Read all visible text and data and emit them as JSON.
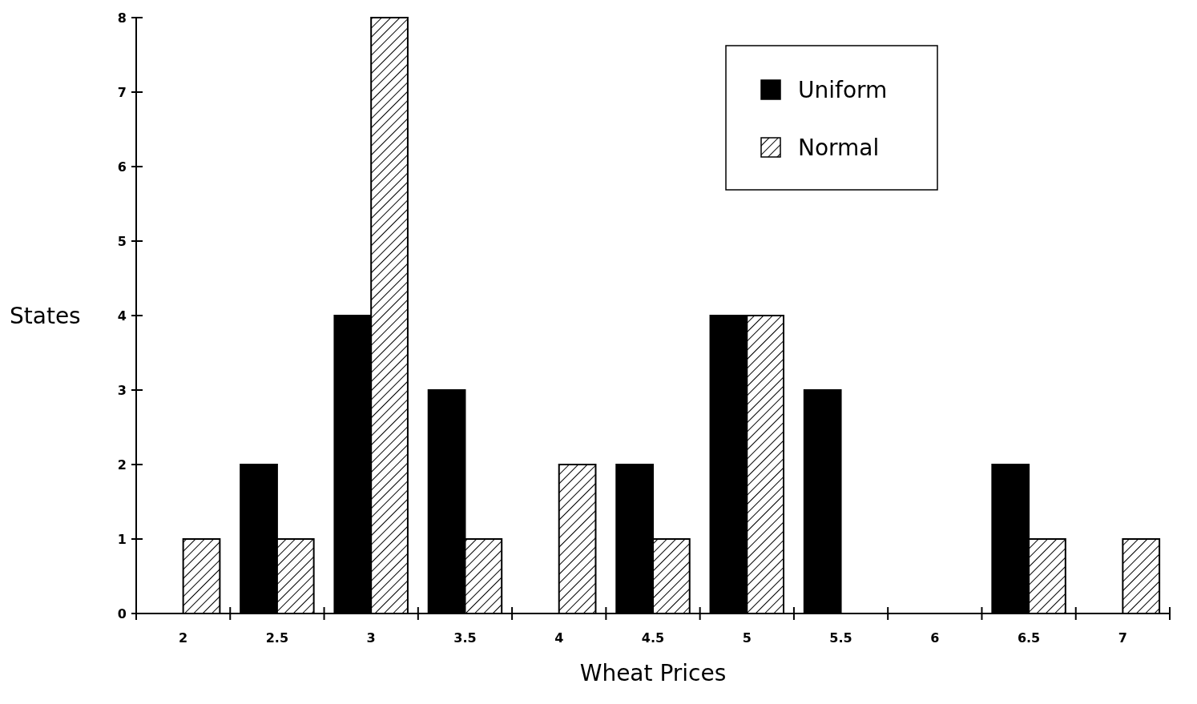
{
  "chart_data": {
    "type": "bar",
    "xlabel": "Wheat Prices",
    "ylabel": "States",
    "categories": [
      "2",
      "2.5",
      "3",
      "3.5",
      "4",
      "4.5",
      "5",
      "5.5",
      "6",
      "6.5",
      "7"
    ],
    "series": [
      {
        "name": "Uniform",
        "color": "#000000",
        "values": [
          0,
          2,
          4,
          3,
          0,
          2,
          4,
          3,
          0,
          2,
          0
        ]
      },
      {
        "name": "Normal",
        "color": "#000000",
        "values": [
          1,
          1,
          8,
          1,
          2,
          1,
          4,
          0,
          0,
          1,
          1
        ]
      }
    ],
    "ylim": [
      0,
      8
    ],
    "yticks": [
      0,
      1,
      2,
      3,
      4,
      5,
      6,
      7,
      8
    ],
    "grid": false,
    "legend": "top right"
  }
}
